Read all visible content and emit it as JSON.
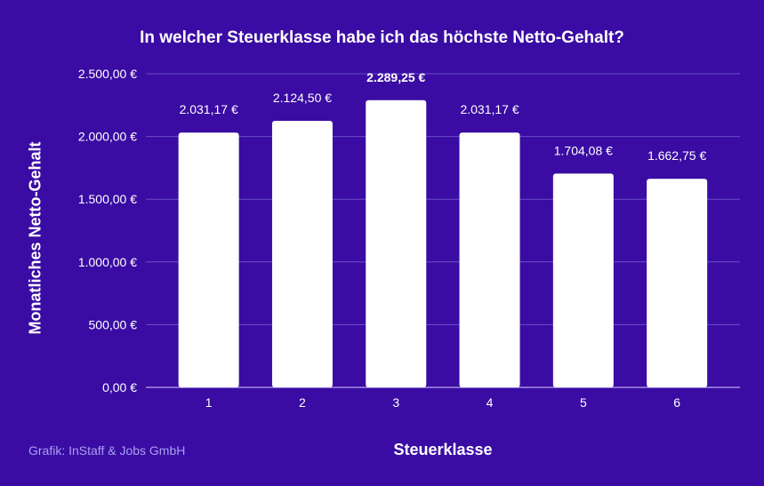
{
  "chart_data": {
    "type": "bar",
    "title": "In welcher Steuerklasse habe ich das höchste Netto-Gehalt?",
    "xlabel": "Steuerklasse",
    "ylabel": "Monatliches Netto-Gehalt",
    "categories": [
      "1",
      "2",
      "3",
      "4",
      "5",
      "6"
    ],
    "values": [
      2031.17,
      2124.5,
      2289.25,
      2031.17,
      1704.08,
      1662.75
    ],
    "data_labels": [
      "2.031,17 €",
      "2.124,50 €",
      "2.289,25 €",
      "2.031,17 €",
      "1.704,08 €",
      "1.662,75 €"
    ],
    "highlight_index": 2,
    "ylim": [
      0,
      2500
    ],
    "yticks": [
      0,
      500,
      1000,
      1500,
      2000,
      2500
    ],
    "ytick_labels": [
      "0,00 €",
      "500,00 €",
      "1.000,00 €",
      "1.500,00 €",
      "2.000,00 €",
      "2.500,00 €"
    ],
    "grid": true,
    "colors": {
      "background": "#3a0ca3",
      "bar": "#ffffff",
      "grid": "#6a4cc8"
    }
  },
  "credit": "Grafik: InStaff & Jobs GmbH"
}
